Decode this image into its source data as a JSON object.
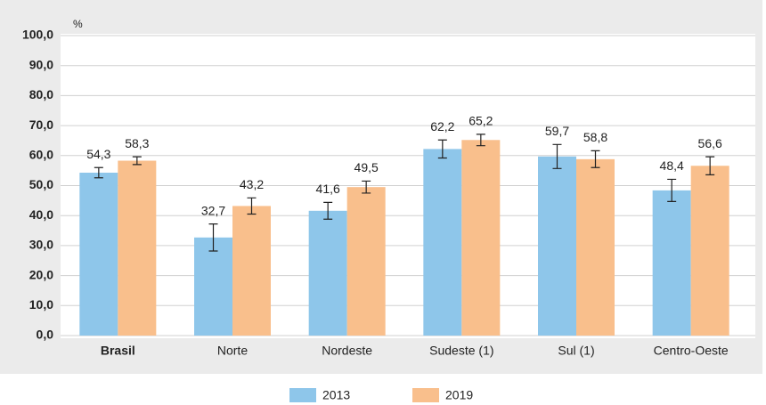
{
  "chart_data": {
    "type": "bar",
    "y_label": "%",
    "categories": [
      "Brasil",
      "Norte",
      "Nordeste",
      "Sudeste (1)",
      "Sul (1)",
      "Centro-Oeste"
    ],
    "series": [
      {
        "name": "2013",
        "color": "#8ec6ea",
        "values": [
          54.3,
          32.7,
          41.6,
          62.2,
          59.7,
          48.4
        ],
        "value_labels": [
          "54,3",
          "32,7",
          "41,6",
          "62,2",
          "59,7",
          "48,4"
        ],
        "errors": [
          1.7,
          4.5,
          2.8,
          3.0,
          4.0,
          3.7
        ]
      },
      {
        "name": "2019",
        "color": "#f9bf8c",
        "values": [
          58.3,
          43.2,
          49.5,
          65.2,
          58.8,
          56.6
        ],
        "value_labels": [
          "58,3",
          "43,2",
          "49,5",
          "65,2",
          "58,8",
          "56,6"
        ],
        "errors": [
          1.3,
          2.7,
          2.0,
          1.9,
          2.8,
          3.0
        ]
      }
    ],
    "ylim": [
      0,
      100
    ],
    "yticks": [
      {
        "value": 0,
        "label": "0,0"
      },
      {
        "value": 10,
        "label": "10,0"
      },
      {
        "value": 20,
        "label": "20,0"
      },
      {
        "value": 30,
        "label": "30,0"
      },
      {
        "value": 40,
        "label": "40,0"
      },
      {
        "value": 50,
        "label": "50,0"
      },
      {
        "value": 60,
        "label": "60,0"
      },
      {
        "value": 70,
        "label": "70,0"
      },
      {
        "value": 80,
        "label": "80,0"
      },
      {
        "value": 90,
        "label": "90,0"
      },
      {
        "value": 100,
        "label": "100,0"
      }
    ],
    "grid": true
  }
}
